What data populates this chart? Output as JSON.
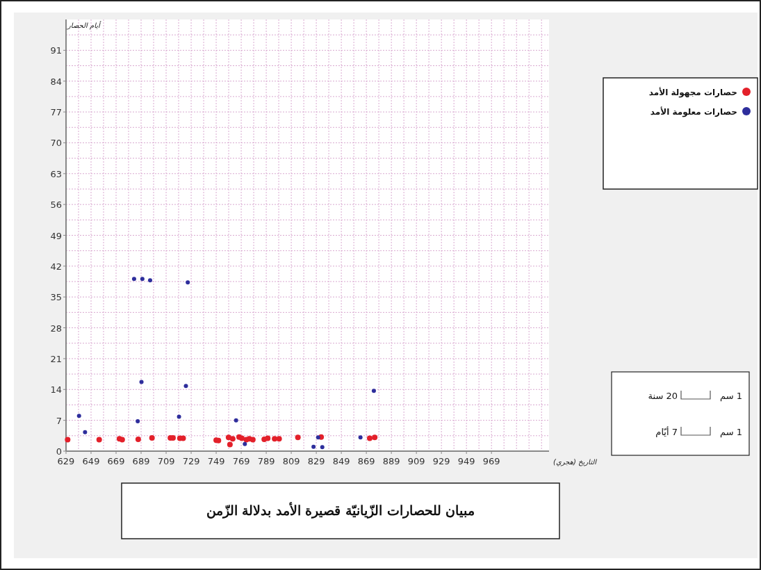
{
  "chart_data": {
    "type": "scatter",
    "title": "مبيان للحصارات الزّيانيّة قصيرة الأمد بدلالة الزّمن",
    "xlabel": "التاريخ (هجري)",
    "ylabel": "أيام الحصار",
    "xlim": [
      629,
      1015
    ],
    "xticks": [
      629,
      649,
      669,
      689,
      709,
      729,
      749,
      769,
      789,
      809,
      829,
      849,
      869,
      889,
      909,
      929,
      949,
      969
    ],
    "ylim": [
      0,
      98
    ],
    "yticks": [
      0,
      7,
      14,
      21,
      28,
      35,
      42,
      49,
      56,
      63,
      70,
      77,
      84,
      91
    ],
    "grid": true,
    "legend": "right",
    "marker": "circle",
    "annotations": [
      "1 سم",
      "20 سنة",
      "1 سم",
      "7 أيّام"
    ],
    "series": [
      {
        "name": "حصارات مجهولة الأمد",
        "color": "#e3202a",
        "x": [
          630.3,
          655.5,
          671.7,
          673.9,
          686.7,
          697.7,
          712.4,
          714.5,
          720,
          722.6,
          749,
          750.8,
          758.9,
          760,
          762.2,
          767.3,
          769.5,
          773.1,
          775.5,
          778.3,
          787.4,
          790.2,
          795.7,
          799.3,
          814.3,
          832.9,
          871.7,
          875.7
        ],
        "values": [
          2.6,
          2.6,
          2.8,
          2.6,
          2.7,
          3,
          3,
          3,
          2.9,
          2.9,
          2.5,
          2.4,
          3.1,
          1.5,
          2.8,
          3.2,
          2.9,
          2.6,
          2.8,
          2.6,
          2.7,
          2.9,
          2.8,
          2.8,
          3.1,
          3.2,
          2.9,
          3.1
        ]
      },
      {
        "name": "حصارات معلومة الأمد",
        "color": "#2e2e9c",
        "x": [
          639.4,
          644.2,
          683.4,
          690,
          696.2,
          726.3,
          689.3,
          724.8,
          686.3,
          719.3,
          764.9,
          771.9,
          826.8,
          833.8,
          830.5,
          864.3,
          875
        ],
        "values": [
          8,
          4.3,
          39.1,
          39.1,
          38.8,
          38.3,
          15.7,
          14.8,
          6.8,
          7.8,
          7,
          1.6,
          1,
          0.9,
          3.1,
          3.1,
          13.7
        ]
      }
    ]
  }
}
